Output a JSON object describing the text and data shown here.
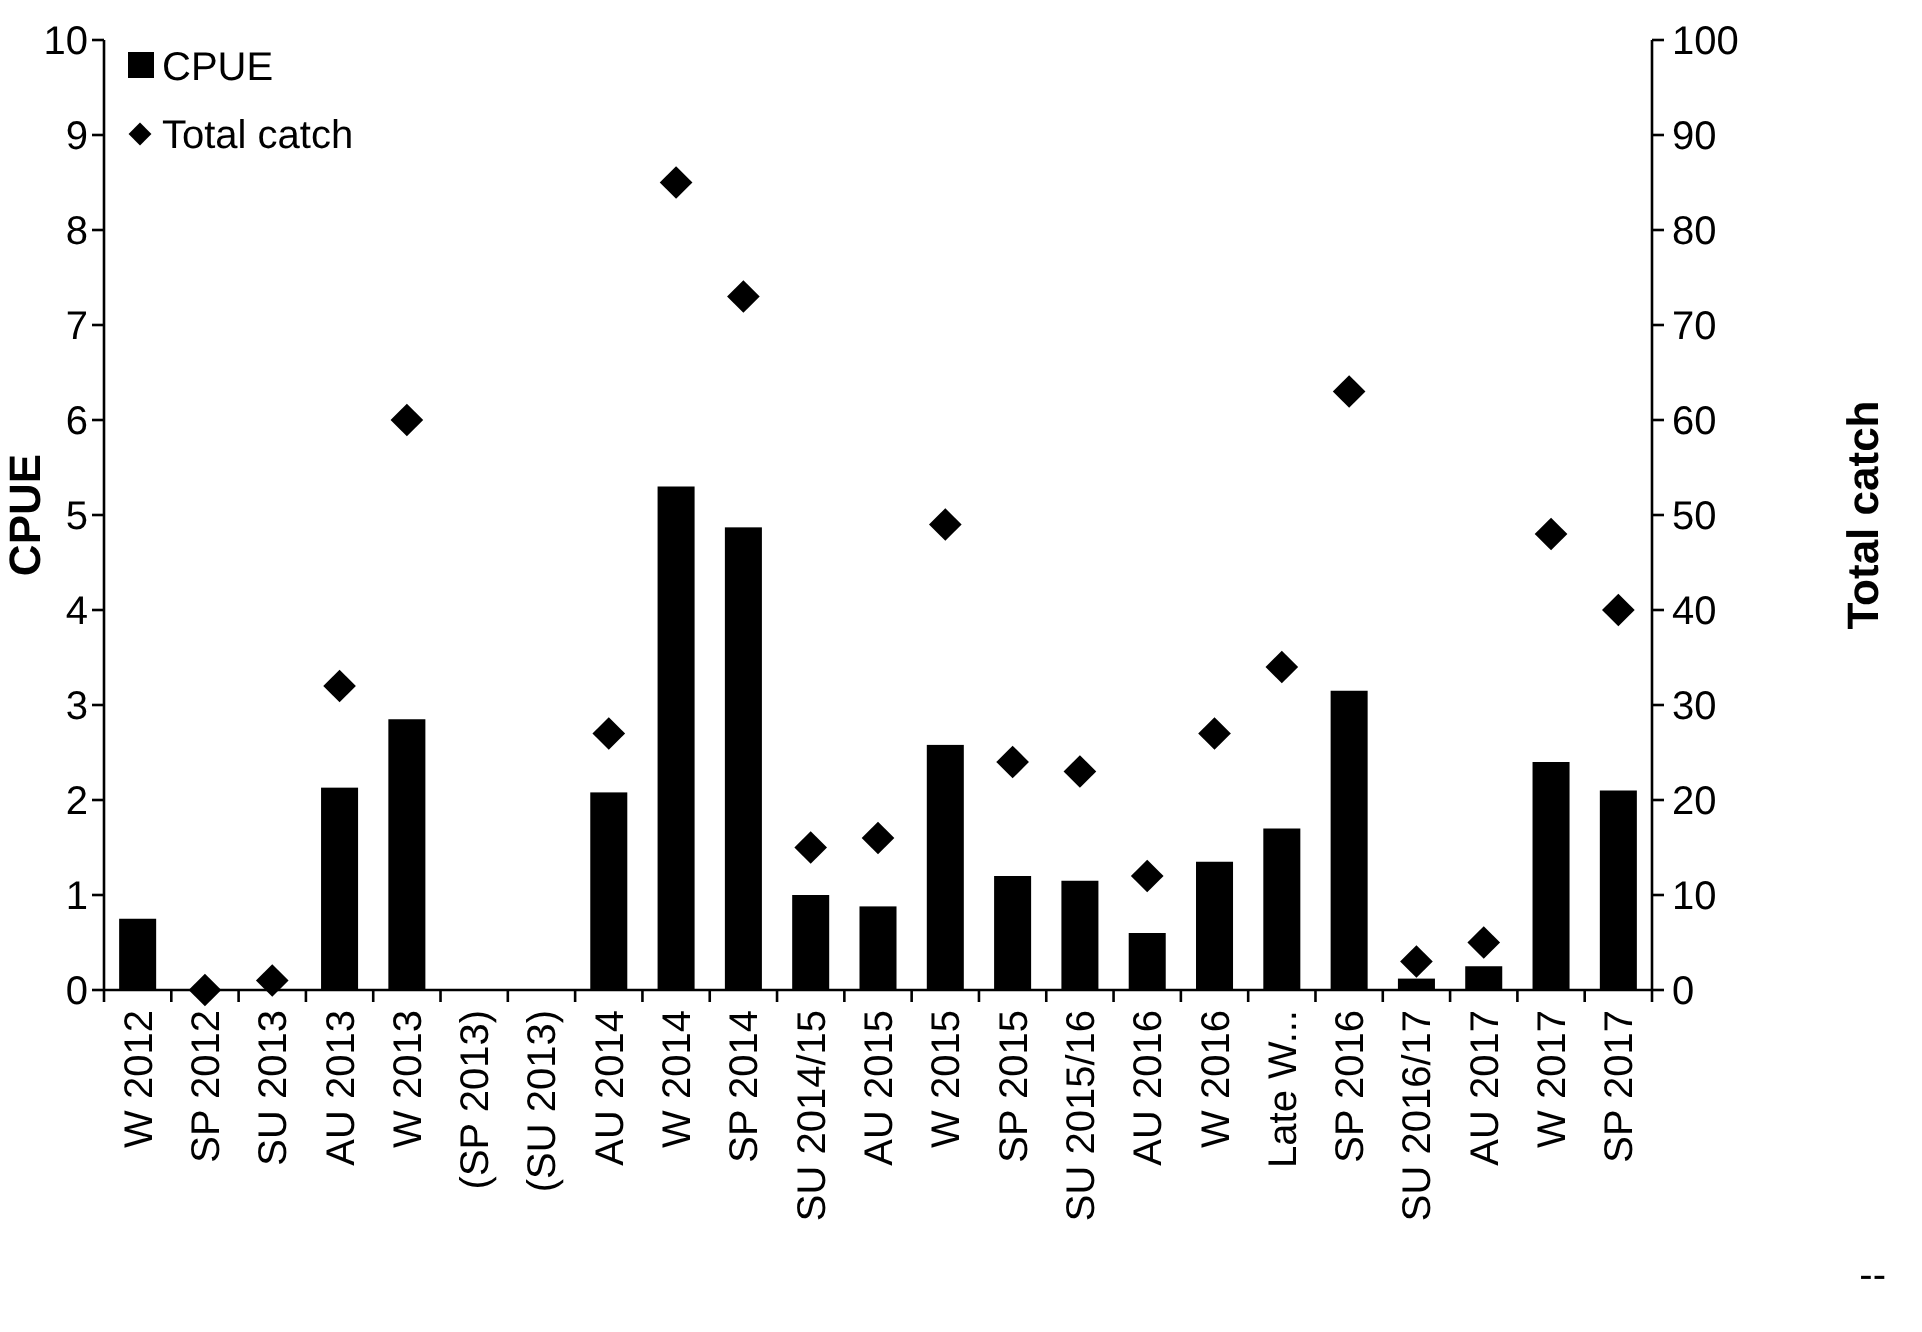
{
  "chart_data": {
    "type": "bar",
    "ylabel": "CPUE",
    "y2label": "Total catch",
    "categories": [
      "W 2012",
      "SP 2012",
      "SU 2013",
      "AU 2013",
      "W 2013",
      "(SP 2013)",
      "(SU 2013)",
      "AU 2014",
      "W 2014",
      "SP 2014",
      "SU 2014/15",
      "AU 2015",
      "W 2015",
      "SP 2015",
      "SU 2015/16",
      "AU 2016",
      "W 2016",
      "Late W...",
      "SP 2016",
      "SU 2016/17",
      "AU 2017",
      "W 2017",
      "SP 2017"
    ],
    "series": [
      {
        "name": "CPUE",
        "color": "#000000",
        "values": [
          0.75,
          0,
          0,
          2.13,
          2.85,
          null,
          null,
          2.08,
          5.3,
          4.87,
          1.0,
          0.88,
          2.58,
          1.2,
          1.15,
          0.6,
          1.35,
          1.7,
          3.15,
          0.12,
          0.25,
          2.4,
          2.1
        ]
      },
      {
        "name": "Total catch",
        "type": "scatter",
        "axis": "y2",
        "marker": "diamond",
        "color": "#000000",
        "values": [
          null,
          0,
          1,
          32,
          60,
          null,
          null,
          27,
          85,
          73,
          15,
          16,
          49,
          24,
          23,
          12,
          27,
          34,
          63,
          3,
          5,
          48,
          40
        ]
      }
    ],
    "ylim": [
      0,
      10
    ],
    "yticks": [
      0,
      1,
      2,
      3,
      4,
      5,
      6,
      7,
      8,
      9,
      10
    ],
    "y2lim": [
      0,
      100
    ],
    "y2ticks": [
      0,
      10,
      20,
      30,
      40,
      50,
      60,
      70,
      80,
      90,
      100
    ],
    "legend": "top left",
    "grid": false,
    "annotations": [
      "--"
    ]
  }
}
